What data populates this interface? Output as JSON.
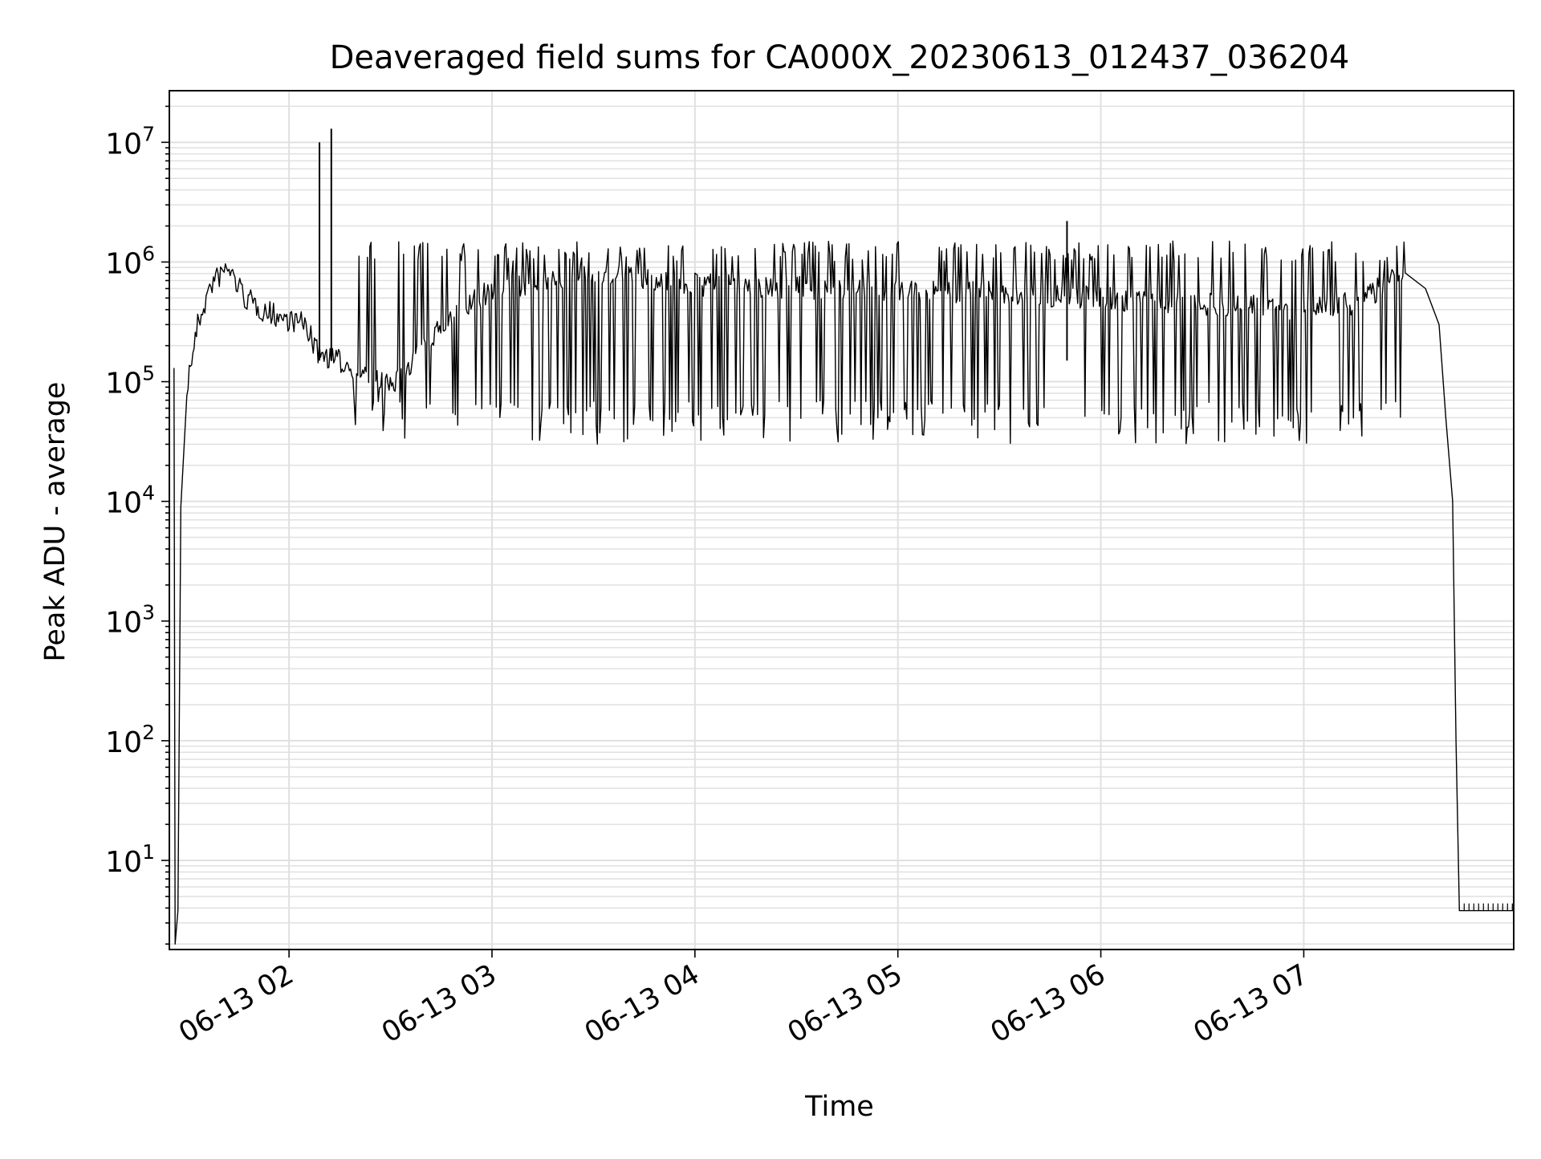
{
  "chart_data": {
    "type": "line",
    "title": "Deaveraged field sums for CA000X_20230613_012437_036204",
    "xlabel": "Time",
    "ylabel": "Peak ADU - average",
    "yscale": "log",
    "ylim": [
      1.8,
      27000000
    ],
    "xlim": [
      "2023-06-13 01:24:37",
      "2023-06-13 08:02:04"
    ],
    "x_ticks": [
      {
        "value": "2023-06-13 02:00",
        "label": "06-13 02"
      },
      {
        "value": "2023-06-13 03:00",
        "label": "06-13 03"
      },
      {
        "value": "2023-06-13 04:00",
        "label": "06-13 04"
      },
      {
        "value": "2023-06-13 05:00",
        "label": "06-13 05"
      },
      {
        "value": "2023-06-13 06:00",
        "label": "06-13 06"
      },
      {
        "value": "2023-06-13 07:00",
        "label": "06-13 07"
      }
    ],
    "y_ticks": [
      {
        "value": 10,
        "base": "10",
        "exp": "1"
      },
      {
        "value": 100,
        "base": "10",
        "exp": "2"
      },
      {
        "value": 1000,
        "base": "10",
        "exp": "3"
      },
      {
        "value": 10000,
        "base": "10",
        "exp": "4"
      },
      {
        "value": 100000,
        "base": "10",
        "exp": "5"
      },
      {
        "value": 1000000,
        "base": "10",
        "exp": "6"
      },
      {
        "value": 10000000,
        "base": "10",
        "exp": "7"
      }
    ],
    "grid": true,
    "line_color": "#000000",
    "grid_color": "#e0e0e0",
    "series": [
      {
        "x": [
          "2023-06-13 01:26:00",
          "2023-06-13 01:26:20",
          "2023-06-13 01:27:10",
          "2023-06-13 01:28:00",
          "2023-06-13 01:30:00",
          "2023-06-13 01:33:00",
          "2023-06-13 01:37:00",
          "2023-06-13 01:42:00",
          "2023-06-13 01:47:00",
          "2023-06-13 01:52:00",
          "2023-06-13 01:57:00",
          "2023-06-13 02:05:00",
          "2023-06-13 02:08:00",
          "2023-06-13 02:14:00",
          "2023-06-13 02:20:00",
          "2023-06-13 02:30:00",
          "2023-06-13 02:45:00",
          "2023-06-13 03:00:00",
          "2023-06-13 03:15:00",
          "2023-06-13 03:30:00",
          "2023-06-13 03:45:00",
          "2023-06-13 04:00:00",
          "2023-06-13 04:30:00",
          "2023-06-13 05:00:00",
          "2023-06-13 05:30:00",
          "2023-06-13 06:00:00",
          "2023-06-13 06:30:00",
          "2023-06-13 07:00:00",
          "2023-06-13 07:15:00",
          "2023-06-13 07:30:00",
          "2023-06-13 07:36:00",
          "2023-06-13 07:40:00",
          "2023-06-13 07:42:00",
          "2023-06-13 07:44:00",
          "2023-06-13 07:45:00",
          "2023-06-13 07:46:00",
          "2023-06-13 08:02:00"
        ],
        "y": [
          130000,
          2,
          3.8,
          9000,
          100000,
          300000,
          650000,
          900000,
          500000,
          400000,
          350000,
          300000,
          180000,
          150000,
          130000,
          90000,
          300000,
          600000,
          700000,
          800000,
          700000,
          650000,
          600000,
          600000,
          550000,
          500000,
          450000,
          400000,
          450000,
          800000,
          600000,
          300000,
          50000,
          10000,
          100,
          3.8,
          3.8
        ]
      }
    ],
    "spikes": [
      {
        "x": "2023-06-13 02:09:00",
        "y": 10000000
      },
      {
        "x": "2023-06-13 02:12:30",
        "y": 13000000
      },
      {
        "x": "2023-06-13 05:50:00",
        "y": 2200000
      }
    ]
  }
}
